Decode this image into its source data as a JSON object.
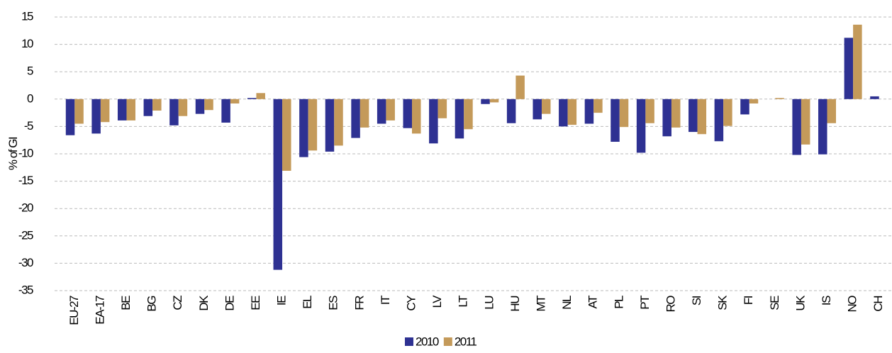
{
  "chart_data": {
    "type": "bar",
    "y_label": "% of GI",
    "categories": [
      "EU-27",
      "EA-17",
      "BE",
      "BG",
      "CZ",
      "DK",
      "DE",
      "EE",
      "IE",
      "EL",
      "ES",
      "FR",
      "IT",
      "CY",
      "LV",
      "LT",
      "LU",
      "HU",
      "MT",
      "NL",
      "AT",
      "PL",
      "PT",
      "RO",
      "SI",
      "SK",
      "FI",
      "SE",
      "UK",
      "IS",
      "NO",
      "CH"
    ],
    "series": [
      {
        "name": "2010",
        "color": "#2e3192",
        "values": [
          -6.6,
          -6.3,
          -3.9,
          -3.1,
          -4.8,
          -2.7,
          -4.3,
          0.2,
          -31.2,
          -10.6,
          -9.6,
          -7.1,
          -4.5,
          -5.3,
          -8.1,
          -7.2,
          -0.9,
          -4.4,
          -3.7,
          -5.0,
          -4.5,
          -7.8,
          -9.8,
          -6.8,
          -6.0,
          -7.7,
          -2.8,
          0.0,
          -10.2,
          -10.1,
          11.2,
          0.5
        ]
      },
      {
        "name": "2011",
        "color": "#c49a5a",
        "values": [
          -4.5,
          -4.2,
          -3.9,
          -2.1,
          -3.1,
          -2.0,
          -0.8,
          1.1,
          -13.1,
          -9.4,
          -8.5,
          -5.2,
          -3.9,
          -6.3,
          -3.5,
          -5.5,
          -0.6,
          4.3,
          -2.7,
          -4.7,
          -2.5,
          -5.1,
          -4.4,
          -5.2,
          -6.4,
          -4.9,
          -0.8,
          0.2,
          -8.3,
          -4.4,
          13.6,
          null
        ]
      }
    ],
    "ylim": [
      -35,
      15
    ],
    "yticks": [
      15,
      10,
      5,
      0,
      -5,
      -10,
      -15,
      -20,
      -25,
      -30,
      -35
    ],
    "grid": true,
    "legend": "bottom"
  }
}
